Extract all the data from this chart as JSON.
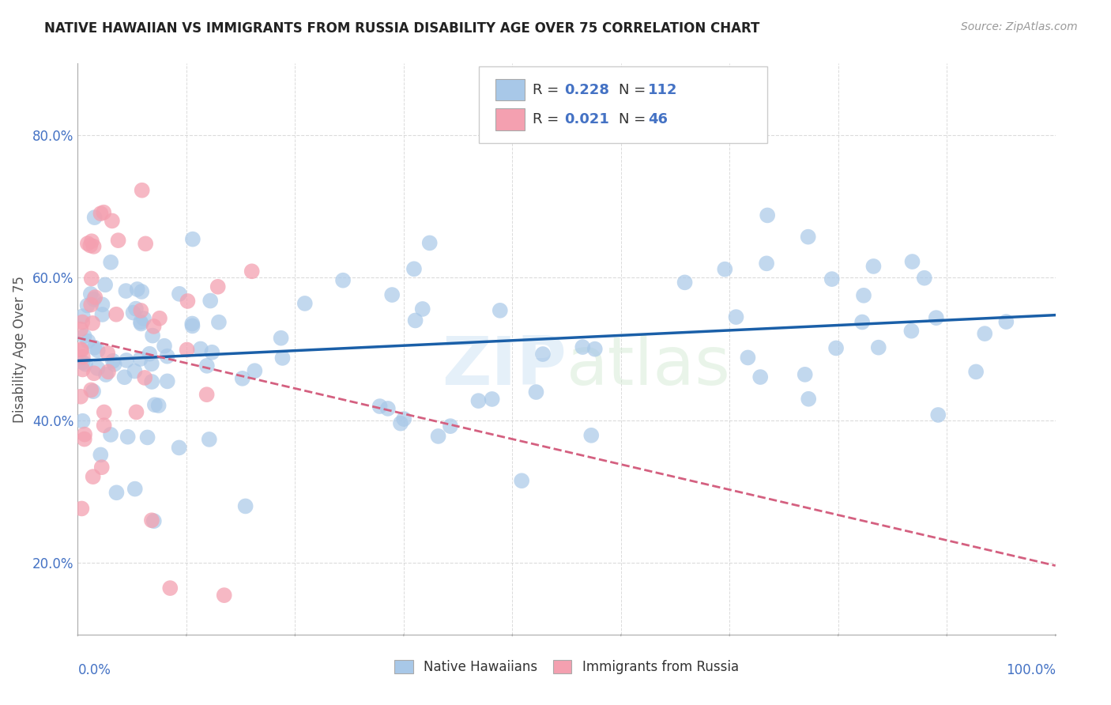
{
  "title": "NATIVE HAWAIIAN VS IMMIGRANTS FROM RUSSIA DISABILITY AGE OVER 75 CORRELATION CHART",
  "source": "Source: ZipAtlas.com",
  "ylabel": "Disability Age Over 75",
  "y_ticks": [
    0.2,
    0.4,
    0.6,
    0.8
  ],
  "y_tick_labels": [
    "20.0%",
    "40.0%",
    "60.0%",
    "80.0%"
  ],
  "blue_R": 0.228,
  "blue_N": 112,
  "pink_R": 0.021,
  "pink_N": 46,
  "blue_color": "#a8c8e8",
  "pink_color": "#f4a0b0",
  "blue_line_color": "#1a5fa8",
  "pink_line_color": "#d46080",
  "legend_label_blue": "Native Hawaiians",
  "legend_label_pink": "Immigrants from Russia",
  "background_color": "#ffffff",
  "watermark_text": "ZIPatlas",
  "xlim": [
    0.0,
    1.0
  ],
  "ylim": [
    0.1,
    0.9
  ]
}
